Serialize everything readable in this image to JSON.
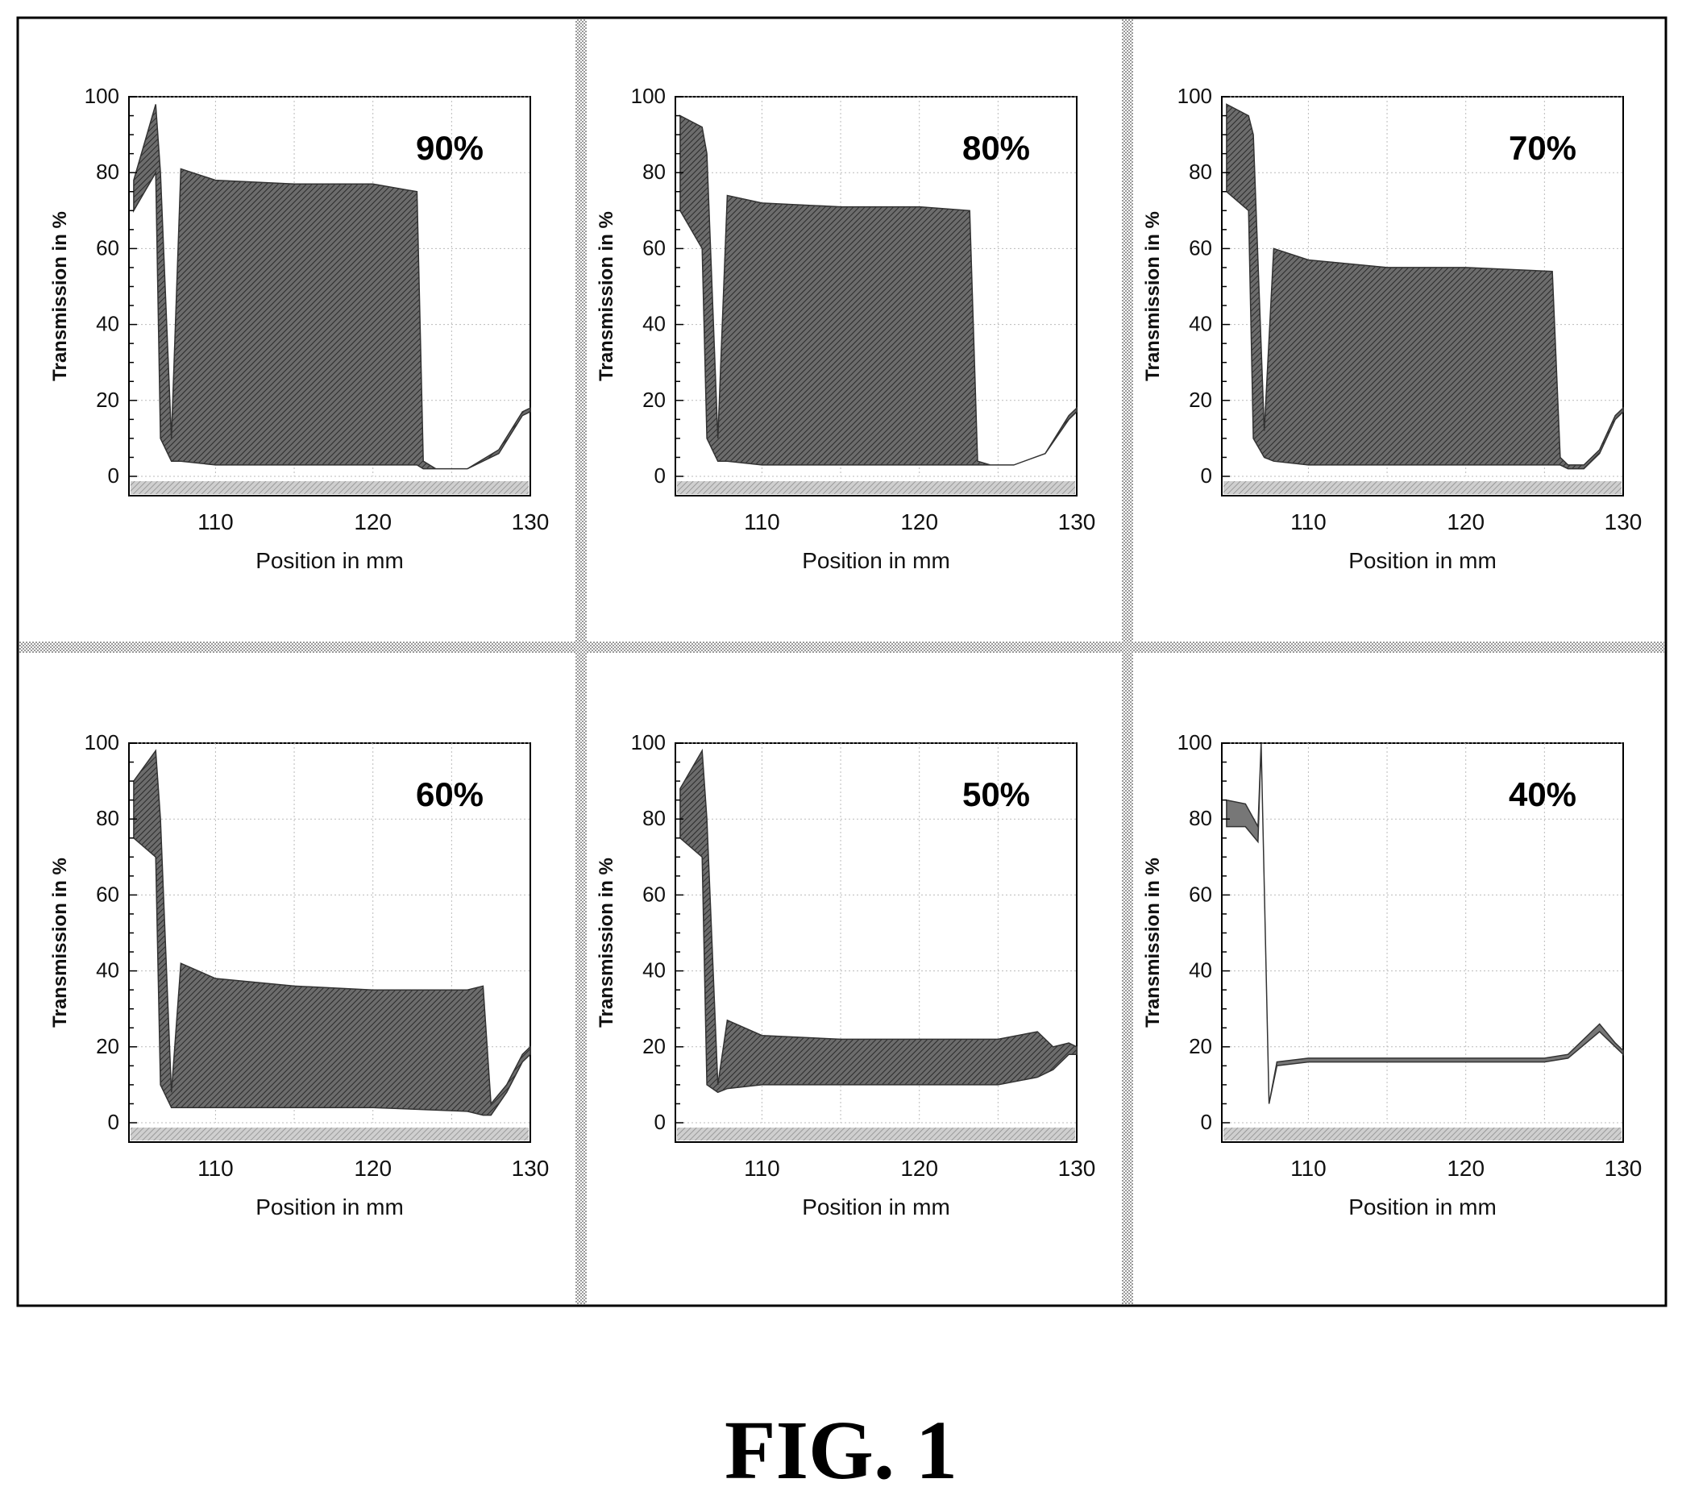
{
  "figure": {
    "caption": "FIG. 1"
  },
  "chart_data": [
    {
      "type": "area",
      "label": "90%",
      "xlabel": "Position in mm",
      "ylabel": "Transmission in %",
      "xlim": [
        104.5,
        130
      ],
      "ylim": [
        0,
        100
      ],
      "xticks": [
        110,
        120,
        130
      ],
      "yticks": [
        0,
        20,
        40,
        60,
        80,
        100
      ],
      "grid": true,
      "x": [
        104.8,
        106.2,
        106.5,
        107.2,
        107.8,
        110,
        115,
        120,
        122.8,
        123.2,
        124,
        126,
        128,
        129.5,
        130
      ],
      "upper": [
        78,
        98,
        80,
        10,
        81,
        78,
        77,
        77,
        75,
        4,
        2,
        2,
        7,
        17,
        18
      ],
      "lower": [
        70,
        80,
        10,
        4,
        4,
        3,
        3,
        3,
        3,
        2,
        2,
        2,
        6,
        16,
        17
      ]
    },
    {
      "type": "area",
      "label": "80%",
      "xlabel": "Position in mm",
      "ylabel": "Transmission in %",
      "xlim": [
        104.5,
        130
      ],
      "ylim": [
        0,
        100
      ],
      "xticks": [
        110,
        120,
        130
      ],
      "yticks": [
        0,
        20,
        40,
        60,
        80,
        100
      ],
      "grid": true,
      "x": [
        104.8,
        106.2,
        106.5,
        107.2,
        107.8,
        110,
        115,
        120,
        123.2,
        123.7,
        124.5,
        126,
        128,
        129.5,
        130
      ],
      "upper": [
        95,
        92,
        85,
        10,
        74,
        72,
        71,
        71,
        70,
        4,
        3,
        3,
        6,
        16,
        18
      ],
      "lower": [
        70,
        60,
        10,
        4,
        4,
        3,
        3,
        3,
        3,
        3,
        3,
        3,
        6,
        15,
        17
      ]
    },
    {
      "type": "area",
      "label": "70%",
      "xlabel": "Position in mm",
      "ylabel": "Transmission in %",
      "xlim": [
        104.5,
        130
      ],
      "ylim": [
        0,
        100
      ],
      "xticks": [
        110,
        120,
        130
      ],
      "yticks": [
        0,
        20,
        40,
        60,
        80,
        100
      ],
      "grid": true,
      "x": [
        104.8,
        106.2,
        106.5,
        107.2,
        107.8,
        110,
        115,
        120,
        125.5,
        126,
        126.5,
        127.5,
        128.5,
        129.5,
        130
      ],
      "upper": [
        98,
        95,
        90,
        12,
        60,
        57,
        55,
        55,
        54,
        5,
        3,
        3,
        7,
        16,
        18
      ],
      "lower": [
        75,
        70,
        10,
        5,
        4,
        3,
        3,
        3,
        3,
        3,
        2,
        2,
        6,
        15,
        17
      ]
    },
    {
      "type": "area",
      "label": "60%",
      "xlabel": "Position in mm",
      "ylabel": "Transmission in %",
      "xlim": [
        104.5,
        130
      ],
      "ylim": [
        0,
        100
      ],
      "xticks": [
        110,
        120,
        130
      ],
      "yticks": [
        0,
        20,
        40,
        60,
        80,
        100
      ],
      "grid": true,
      "x": [
        104.8,
        106.2,
        106.5,
        107.2,
        107.8,
        110,
        115,
        120,
        126,
        127,
        127.5,
        128.5,
        129.5,
        130
      ],
      "upper": [
        90,
        98,
        80,
        8,
        42,
        38,
        36,
        35,
        35,
        36,
        5,
        10,
        18,
        20
      ],
      "lower": [
        75,
        70,
        10,
        4,
        4,
        4,
        4,
        4,
        3,
        2,
        2,
        8,
        16,
        18
      ]
    },
    {
      "type": "area",
      "label": "50%",
      "xlabel": "Position in mm",
      "ylabel": "Transmission in %",
      "xlim": [
        104.5,
        130
      ],
      "ylim": [
        0,
        100
      ],
      "xticks": [
        110,
        120,
        130
      ],
      "yticks": [
        0,
        20,
        40,
        60,
        80,
        100
      ],
      "grid": true,
      "x": [
        104.8,
        106.2,
        106.5,
        107.2,
        107.8,
        110,
        115,
        120,
        125,
        127.5,
        128.5,
        129.5,
        130
      ],
      "upper": [
        88,
        98,
        80,
        10,
        27,
        23,
        22,
        22,
        22,
        24,
        20,
        21,
        20
      ],
      "lower": [
        75,
        70,
        10,
        8,
        9,
        10,
        10,
        10,
        10,
        12,
        14,
        18,
        18
      ]
    },
    {
      "type": "line",
      "label": "40%",
      "xlabel": "Position in mm",
      "ylabel": "Transmission in %",
      "xlim": [
        104.5,
        130
      ],
      "ylim": [
        0,
        100
      ],
      "xticks": [
        110,
        120,
        130
      ],
      "yticks": [
        0,
        20,
        40,
        60,
        80,
        100
      ],
      "grid": true,
      "x": [
        104.8,
        106,
        106.8,
        107,
        107.5,
        108,
        110,
        115,
        120,
        125,
        126.5,
        128.5,
        129.5,
        130
      ],
      "upper": [
        85,
        84,
        78,
        100,
        5,
        16,
        17,
        17,
        17,
        17,
        18,
        26,
        21,
        19
      ],
      "lower": [
        78,
        78,
        74,
        100,
        5,
        15,
        16,
        16,
        16,
        16,
        17,
        24,
        20,
        18
      ]
    }
  ]
}
